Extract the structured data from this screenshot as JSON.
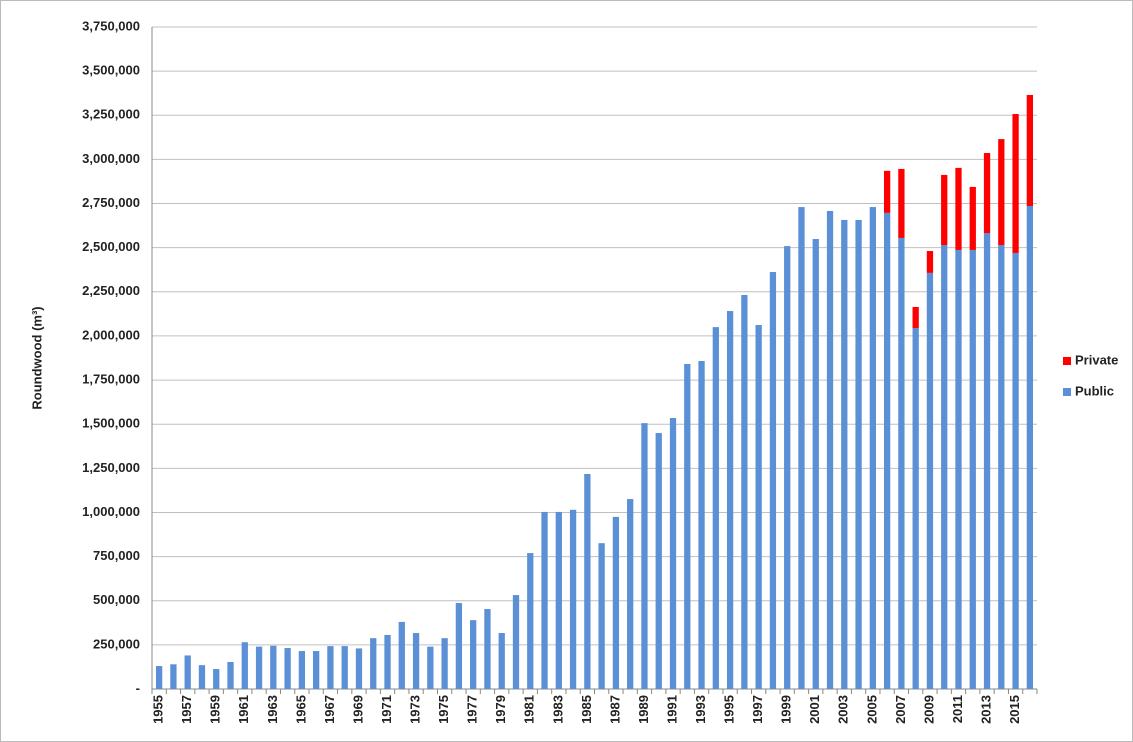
{
  "chart_data": {
    "type": "stacked-bar",
    "y_label": "Roundwood  (m³)",
    "categories": [
      "1955",
      null,
      "1957",
      null,
      "1959",
      null,
      "1961",
      null,
      "1963",
      null,
      "1965",
      null,
      "1967",
      null,
      "1969",
      null,
      "1971",
      null,
      "1973",
      null,
      "1975",
      null,
      "1977",
      null,
      "1979",
      null,
      "1981",
      null,
      "1983",
      null,
      "1985",
      null,
      "1987",
      null,
      "1989",
      null,
      "1991",
      null,
      "1993",
      null,
      "1995",
      null,
      "1997",
      null,
      "1999",
      null,
      "2001",
      null,
      "2003",
      null,
      "2005",
      null,
      "2007",
      null,
      "2009",
      null,
      "2011",
      null,
      "2013",
      null,
      "2015",
      null
    ],
    "series": [
      {
        "name": "Public",
        "color": "#5b8fd6",
        "values": [
          130000,
          140000,
          190000,
          135000,
          113000,
          153000,
          265000,
          240000,
          245000,
          232000,
          215000,
          215000,
          243000,
          243000,
          230000,
          288000,
          306000,
          380000,
          317000,
          240000,
          288000,
          487000,
          390000,
          453000,
          317000,
          532000,
          770000,
          1003000,
          1003000,
          1015000,
          1218000,
          826000,
          975000,
          1076000,
          1506000,
          1450000,
          1535000,
          1841000,
          1858000,
          2050000,
          2141000,
          2232000,
          2062000,
          2362000,
          2509000,
          2730000,
          2549000,
          2708000,
          2657000,
          2657000,
          2730000,
          2697000,
          2555000,
          2045000,
          2357000,
          2515000,
          2487000,
          2487000,
          2583000,
          2515000,
          2470000,
          2736000
        ]
      },
      {
        "name": "Private",
        "color": "#ff0000",
        "values": [
          0,
          0,
          0,
          0,
          0,
          0,
          0,
          0,
          0,
          0,
          0,
          0,
          0,
          0,
          0,
          0,
          0,
          0,
          0,
          0,
          0,
          0,
          0,
          0,
          0,
          0,
          0,
          0,
          0,
          0,
          0,
          0,
          0,
          0,
          0,
          0,
          0,
          0,
          0,
          0,
          0,
          0,
          0,
          0,
          0,
          0,
          0,
          0,
          0,
          0,
          0,
          238000,
          391000,
          119000,
          124000,
          397000,
          465000,
          357000,
          453000,
          600000,
          787000,
          629000
        ]
      }
    ],
    "ylim": [
      0,
      3750000
    ],
    "yticks": [
      {
        "value": 0,
        "label": "-"
      },
      {
        "value": 250000,
        "label": "250,000"
      },
      {
        "value": 500000,
        "label": "500,000"
      },
      {
        "value": 750000,
        "label": "750,000"
      },
      {
        "value": 1000000,
        "label": "1,000,000"
      },
      {
        "value": 1250000,
        "label": "1,250,000"
      },
      {
        "value": 1500000,
        "label": "1,500,000"
      },
      {
        "value": 1750000,
        "label": "1,750,000"
      },
      {
        "value": 2000000,
        "label": "2,000,000"
      },
      {
        "value": 2250000,
        "label": "2,250,000"
      },
      {
        "value": 2500000,
        "label": "2,500,000"
      },
      {
        "value": 2750000,
        "label": "2,750,000"
      },
      {
        "value": 3000000,
        "label": "3,000,000"
      },
      {
        "value": 3250000,
        "label": "3,250,000"
      },
      {
        "value": 3500000,
        "label": "3,500,000"
      },
      {
        "value": 3750000,
        "label": "3,750,000"
      }
    ],
    "grid": true,
    "legend": "right"
  }
}
